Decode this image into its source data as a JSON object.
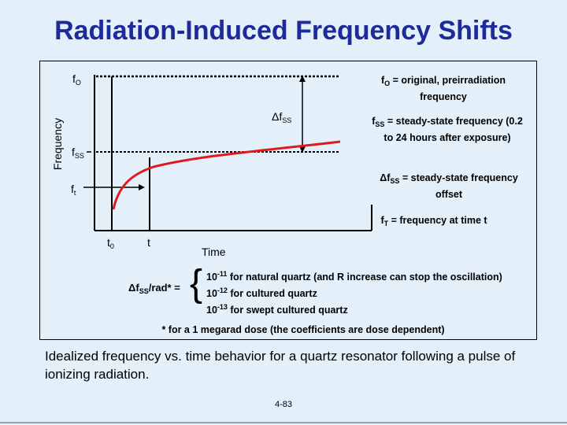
{
  "title": "Radiation-Induced Frequency Shifts",
  "axes": {
    "y_label": "Frequency",
    "x_label": "Time"
  },
  "curve_labels": {
    "f0_symbol": "f",
    "f0_sub": "O",
    "fss_symbol": "f",
    "fss_sub": "SS",
    "ft_symbol": "f",
    "ft_sub": "t",
    "delta_fss": "Δf",
    "delta_fss_sub": "SS",
    "t0_symbol": "t",
    "t0_sub": "0",
    "t_symbol": "t"
  },
  "legend": {
    "f0": {
      "sym": "f",
      "sub": "O",
      "text": " = original, preirradiation frequency"
    },
    "fss": {
      "sym": "f",
      "sub": "SS",
      "text": " = steady-state frequency (0.2 to 24 hours after exposure)"
    },
    "delta_fss": {
      "sym": "Δf",
      "sub": "SS",
      "text": " = steady-state frequency offset"
    },
    "ft": {
      "sym": "f",
      "sub": "T",
      "text": " = frequency at time t"
    }
  },
  "rate_equation": {
    "lhs_sym": "Δf",
    "lhs_sub": "SS",
    "lhs_rest": "/rad* =",
    "brace": "{",
    "lines": [
      {
        "base": "10",
        "exp": "-11",
        "text": " for natural quartz (and R increase can stop the oscillation)"
      },
      {
        "base": "10",
        "exp": "-12",
        "text": " for cultured quartz"
      },
      {
        "base": "10",
        "exp": "-13",
        "text": " for swept cultured quartz"
      }
    ]
  },
  "footnote": "* for a 1 megarad dose (the coefficients are dose dependent)",
  "caption": "Idealized frequency vs. time behavior for a quartz resonator following a pulse of ionizing radiation.",
  "page_number": "4-83",
  "colors": {
    "title": "#1d2a9c",
    "background": "#e3f0fa",
    "curve": "#e0191e"
  }
}
